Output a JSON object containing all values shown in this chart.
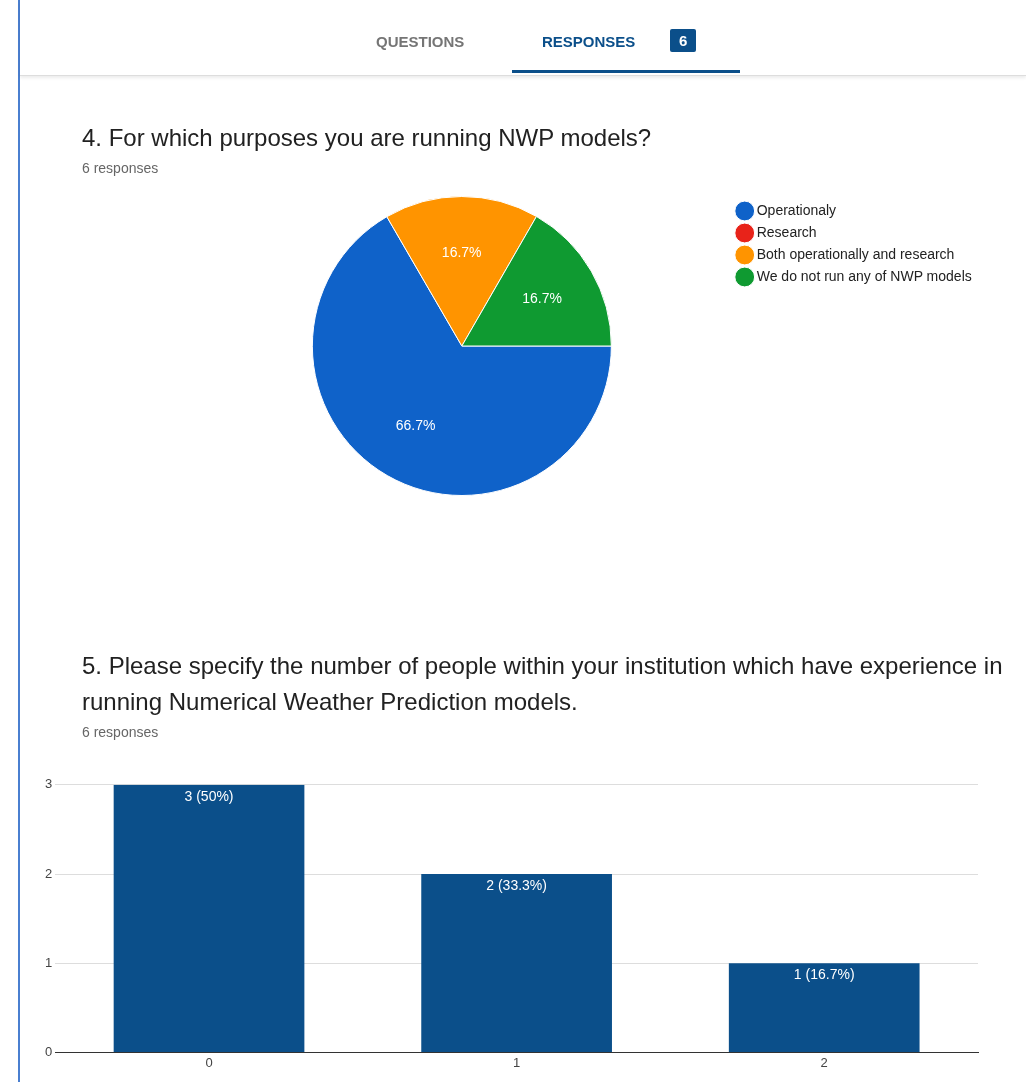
{
  "chart_data": [
    {
      "type": "other",
      "annotations": [
        "QUESTIONS",
        "RESPONSES",
        "6"
      ]
    },
    {
      "type": "pie",
      "title": "4. For which purposes you are running NWP models?",
      "subtitle": "6 responses",
      "categories": [
        "Operationaly",
        "Research",
        "Both operationally and research",
        "We do not run any of NWP models"
      ],
      "values": [
        66.7,
        0,
        16.7,
        16.7
      ],
      "colors": [
        "#0f62c9",
        "#e8231a",
        "#ff9400",
        "#0f9a31"
      ],
      "value_labels": [
        "66.7%",
        null,
        "16.7%",
        "16.7%"
      ],
      "legend": "top right"
    },
    {
      "type": "bar",
      "title": "5. Please specify the number of people within your institution which have experience in running Numerical Weather Prediction models.",
      "subtitle": "6 responses",
      "categories": [
        "0",
        "1",
        "2"
      ],
      "values": [
        3,
        2,
        1
      ],
      "color": "#0b4f8a",
      "value_labels": [
        "3 (50%)",
        "2 (33.3%)",
        "1 (16.7%)"
      ],
      "ylim": [
        0,
        3
      ],
      "yticks": [
        0,
        1,
        2,
        3
      ],
      "grid": "y"
    }
  ]
}
